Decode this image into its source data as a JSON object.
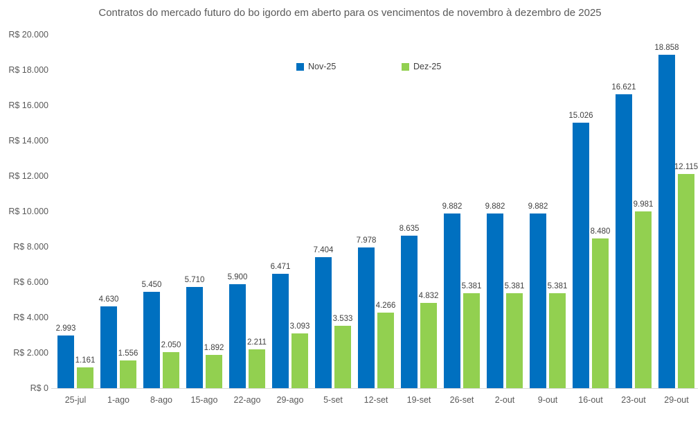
{
  "chart_data": {
    "type": "bar",
    "title": "Contratos do mercado futuro do bo igordo em aberto para os vencimentos de novembro à dezembro de 2025",
    "categories": [
      "25-jul",
      "1-ago",
      "8-ago",
      "15-ago",
      "22-ago",
      "29-ago",
      "5-set",
      "12-set",
      "19-set",
      "26-set",
      "2-out",
      "9-out",
      "16-out",
      "23-out",
      "29-out"
    ],
    "series": [
      {
        "name": "Nov-25",
        "color": "#0070C0",
        "values": [
          2993,
          4630,
          5450,
          5710,
          5900,
          6471,
          7404,
          7978,
          8635,
          9882,
          9882,
          9882,
          15026,
          16621,
          18858
        ],
        "labels": [
          "2.993",
          "4.630",
          "5.450",
          "5.710",
          "5.900",
          "6.471",
          "7.404",
          "7.978",
          "8.635",
          "9.882",
          "9.882",
          "9.882",
          "15.026",
          "16.621",
          "18.858"
        ]
      },
      {
        "name": "Dez-25",
        "color": "#92D050",
        "values": [
          1161,
          1556,
          2050,
          1892,
          2211,
          3093,
          3533,
          4266,
          4832,
          5381,
          5381,
          5381,
          8480,
          9981,
          12115
        ],
        "labels": [
          "1.161",
          "1.556",
          "2.050",
          "1.892",
          "2.211",
          "3.093",
          "3.533",
          "4.266",
          "4.832",
          "5.381",
          "5.381",
          "5.381",
          "8.480",
          "9.981",
          "12.115"
        ]
      }
    ],
    "ylim": [
      0,
      20000
    ],
    "ytick_step": 2000,
    "ytick_labels": [
      "R$ 0",
      "R$ 2.000",
      "R$ 4.000",
      "R$ 6.000",
      "R$ 8.000",
      "R$ 10.000",
      "R$ 12.000",
      "R$ 14.000",
      "R$ 16.000",
      "R$ 18.000",
      "R$ 20.000"
    ],
    "grid": false,
    "legend_position": "top-center",
    "data_labels": true,
    "axis_line_color": "#d9d9d9",
    "text_color": "#595959",
    "label_color": "#404040"
  }
}
